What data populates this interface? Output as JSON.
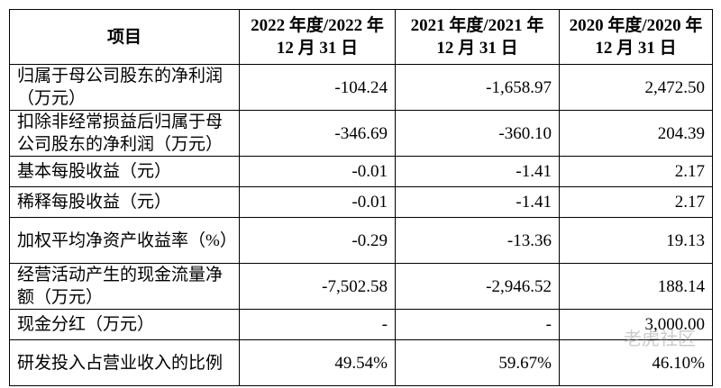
{
  "table": {
    "header": [
      [
        "项目"
      ],
      [
        "2022 年度/2022 年",
        "12 月 31 日"
      ],
      [
        "2021 年度/2021 年",
        "12 月 31 日"
      ],
      [
        "2020 年度/2020 年",
        "12 月 31 日"
      ]
    ],
    "rows": [
      [
        "归属于母公司股东的净利润（万元）",
        "-104.24",
        "-1,658.97",
        "2,472.50"
      ],
      [
        "扣除非经常损益后归属于母公司股东的净利润（万元）",
        "-346.69",
        "-360.10",
        "204.39"
      ],
      [
        "基本每股收益（元）",
        "-0.01",
        "-1.41",
        "2.17"
      ],
      [
        "稀释每股收益（元）",
        "-0.01",
        "-1.41",
        "2.17"
      ],
      [
        "加权平均净资产收益率（%）",
        "-0.29",
        "-13.36",
        "19.13"
      ],
      [
        "经营活动产生的现金流量净额（万元）",
        "-7,502.58",
        "-2,946.52",
        "188.14"
      ],
      [
        "现金分红（万元）",
        "-",
        "-",
        "3,000.00"
      ],
      [
        "研发投入占营业收入的比例",
        "49.54%",
        "59.67%",
        "46.10%"
      ]
    ]
  },
  "watermark": "老虎社区"
}
